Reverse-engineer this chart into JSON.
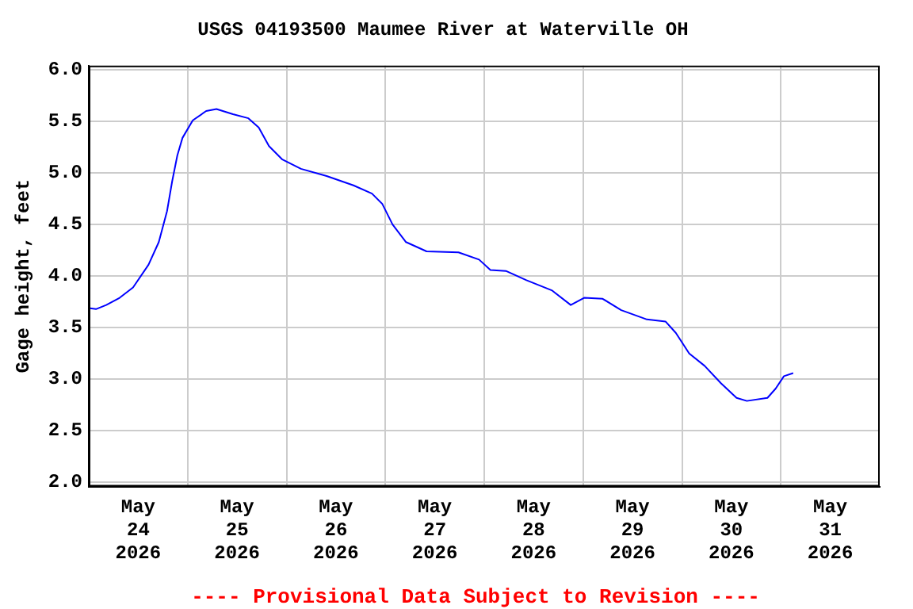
{
  "chart_data": {
    "type": "line",
    "title": "USGS 04193500 Maumee River at Waterville OH",
    "ylabel": "Gage height, feet",
    "annotations": [
      "---- Provisional Data Subject to Revision ----"
    ],
    "x": [
      "2026-05-24T00:00",
      "2026-05-24T01:45",
      "2026-05-24T04:15",
      "2026-05-24T07:30",
      "2026-05-24T10:45",
      "2026-05-24T14:30",
      "2026-05-24T17:00",
      "2026-05-24T19:00",
      "2026-05-24T20:15",
      "2026-05-24T21:30",
      "2026-05-24T22:45",
      "2026-05-25T01:15",
      "2026-05-25T04:30",
      "2026-05-25T07:00",
      "2026-05-25T11:00",
      "2026-05-25T14:45",
      "2026-05-25T17:15",
      "2026-05-25T19:45",
      "2026-05-25T23:00",
      "2026-05-26T03:30",
      "2026-05-26T09:45",
      "2026-05-26T16:15",
      "2026-05-26T20:45",
      "2026-05-26T23:15",
      "2026-05-27T01:45",
      "2026-05-27T05:00",
      "2026-05-27T10:00",
      "2026-05-27T17:45",
      "2026-05-27T22:45",
      "2026-05-28T01:30",
      "2026-05-28T05:15",
      "2026-05-28T10:15",
      "2026-05-28T16:30",
      "2026-05-28T21:00",
      "2026-05-29T00:15",
      "2026-05-29T04:45",
      "2026-05-29T09:15",
      "2026-05-29T15:30",
      "2026-05-29T20:00",
      "2026-05-29T22:30",
      "2026-05-30T01:45",
      "2026-05-30T05:30",
      "2026-05-30T09:30",
      "2026-05-30T13:15",
      "2026-05-30T15:45",
      "2026-05-30T20:45",
      "2026-05-30T22:45",
      "2026-05-31T00:45",
      "2026-05-31T03:00"
    ],
    "series": [
      {
        "color": "#0000ff",
        "values": [
          3.69,
          3.68,
          3.72,
          3.79,
          3.89,
          4.11,
          4.33,
          4.63,
          4.92,
          5.17,
          5.34,
          5.51,
          5.6,
          5.62,
          5.57,
          5.53,
          5.44,
          5.26,
          5.13,
          5.04,
          4.97,
          4.88,
          4.8,
          4.7,
          4.5,
          4.33,
          4.24,
          4.23,
          4.16,
          4.06,
          4.05,
          3.96,
          3.86,
          3.72,
          3.79,
          3.78,
          3.67,
          3.58,
          3.56,
          3.45,
          3.25,
          3.13,
          2.96,
          2.82,
          2.79,
          2.82,
          2.91,
          3.03,
          3.06
        ]
      }
    ],
    "xlim": [
      "2026-05-24T00:00",
      "2026-06-01T00:00"
    ],
    "xticks": [
      {
        "value": "2026-05-24T12:00",
        "label": "May 24 2026"
      },
      {
        "value": "2026-05-25T00:00",
        "label": null
      },
      {
        "value": "2026-05-25T12:00",
        "label": "May 25 2026"
      },
      {
        "value": "2026-05-26T00:00",
        "label": null
      },
      {
        "value": "2026-05-26T12:00",
        "label": "May 26 2026"
      },
      {
        "value": "2026-05-27T00:00",
        "label": null
      },
      {
        "value": "2026-05-27T12:00",
        "label": "May 27 2026"
      },
      {
        "value": "2026-05-28T00:00",
        "label": null
      },
      {
        "value": "2026-05-28T12:00",
        "label": "May 28 2026"
      },
      {
        "value": "2026-05-29T00:00",
        "label": null
      },
      {
        "value": "2026-05-29T12:00",
        "label": "May 29 2026"
      },
      {
        "value": "2026-05-30T00:00",
        "label": null
      },
      {
        "value": "2026-05-30T12:00",
        "label": "May 30 2026"
      },
      {
        "value": "2026-05-31T00:00",
        "label": null
      },
      {
        "value": "2026-05-31T12:00",
        "label": "May 31 2026"
      }
    ],
    "ylim": [
      1.96,
      6.04
    ],
    "yticks": [
      {
        "value": 2,
        "label": "2.0"
      },
      {
        "value": 2.5,
        "label": "2.5"
      },
      {
        "value": 3,
        "label": "3.0"
      },
      {
        "value": 3.5,
        "label": "3.5"
      },
      {
        "value": 4,
        "label": "4.0"
      },
      {
        "value": 4.5,
        "label": "4.5"
      },
      {
        "value": 5,
        "label": "5.0"
      },
      {
        "value": 5.5,
        "label": "5.5"
      },
      {
        "value": 6,
        "label": "6.0"
      }
    ],
    "grid": true,
    "legend": false,
    "marker": "none",
    "line_style": "solid"
  }
}
